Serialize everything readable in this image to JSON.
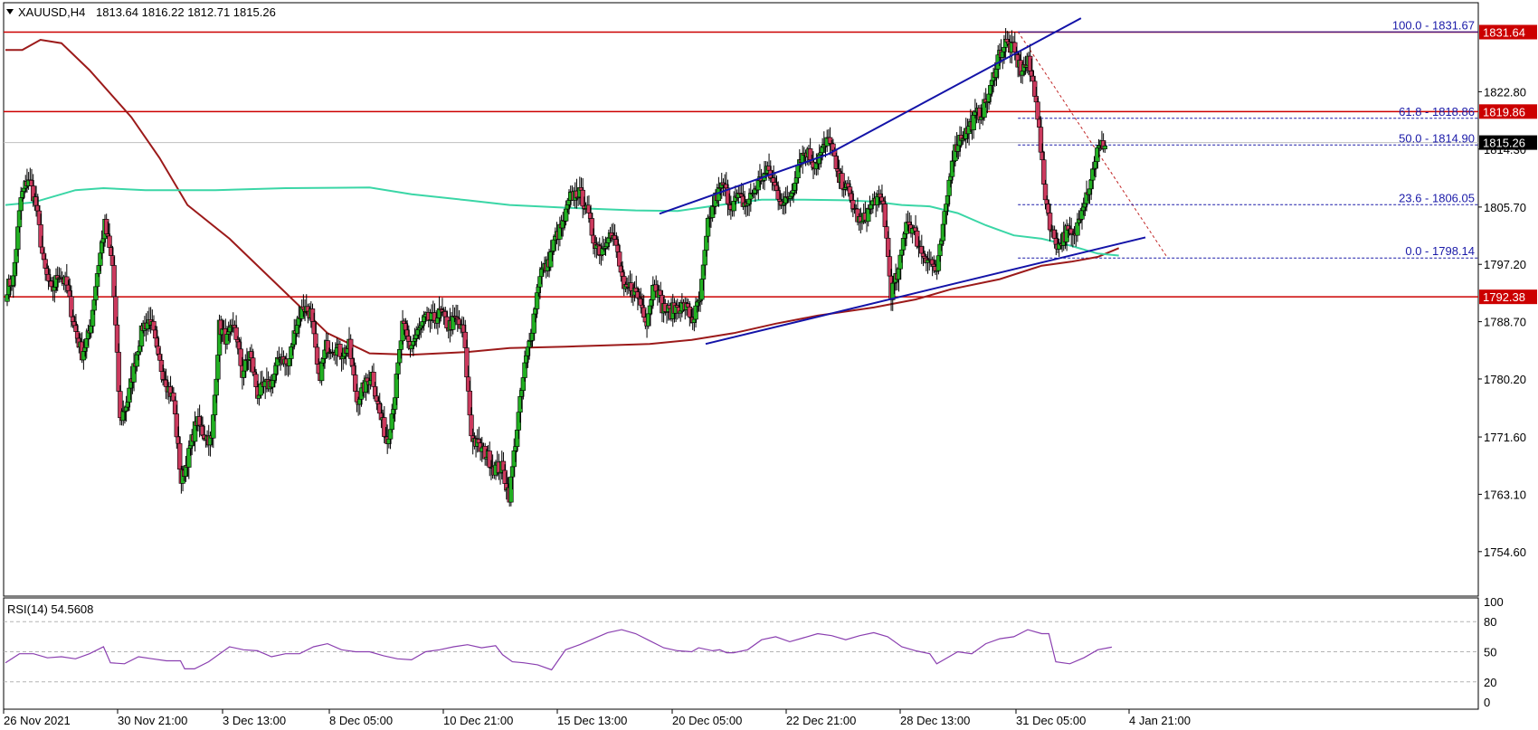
{
  "header": {
    "symbol": "XAUUSD,H4",
    "ohlc": "1813.64 1816.22 1812.71 1815.26"
  },
  "colors": {
    "bull": "#22b022",
    "bear": "#cc3a5e",
    "wick": "#000000",
    "sma_slow": "#9c1a1a",
    "sma_fast": "#3ad6a6",
    "trendline": "#1313a8",
    "level": "#cc0000",
    "fib": "#1a1aa8",
    "rsi": "#8a3fb0"
  },
  "chart_data": {
    "type": "candlestick",
    "ylim": [
      1748,
      1836
    ],
    "price_ticks": [
      "1822.80",
      "1814.30",
      "1805.70",
      "1797.20",
      "1788.70",
      "1780.20",
      "1771.60",
      "1763.10",
      "1754.60"
    ],
    "time_labels": [
      "26 Nov 2021",
      "30 Nov 21:00",
      "3 Dec 13:00",
      "8 Dec 05:00",
      "10 Dec 21:00",
      "15 Dec 13:00",
      "20 Dec 05:00",
      "22 Dec 21:00",
      "28 Dec 13:00",
      "31 Dec 05:00",
      "4 Jan 21:00"
    ],
    "current_price": "1815.26",
    "levels": [
      {
        "label": "1831.64",
        "value": 1831.64
      },
      {
        "label": "1819.86",
        "value": 1819.86
      },
      {
        "label": "1792.38",
        "value": 1792.38
      }
    ],
    "fibonacci": [
      {
        "label": "100.0 - 1831.67",
        "value": 1831.67
      },
      {
        "label": "61.8 - 1818.86",
        "value": 1818.86
      },
      {
        "label": "50.0 - 1814.90",
        "value": 1814.9
      },
      {
        "label": "23.6 - 1806.05",
        "value": 1806.05
      },
      {
        "label": "0.0 - 1798.14",
        "value": 1798.14
      }
    ],
    "closes": [
      1795,
      1807,
      1810,
      1806,
      1797,
      1793,
      1796,
      1794,
      1788,
      1784,
      1787,
      1796,
      1803,
      1797,
      1774,
      1777,
      1783,
      1788,
      1789,
      1783,
      1780,
      1777,
      1765,
      1769,
      1774,
      1772,
      1771,
      1788,
      1786,
      1788,
      1781,
      1784,
      1778,
      1779,
      1780,
      1784,
      1782,
      1788,
      1791,
      1790,
      1780,
      1785,
      1785,
      1784,
      1785,
      1777,
      1779,
      1781,
      1775,
      1771,
      1778,
      1788,
      1785,
      1787,
      1789,
      1789,
      1790,
      1788,
      1789,
      1787,
      1772,
      1770,
      1769,
      1767,
      1767,
      1763,
      1773,
      1782,
      1788,
      1796,
      1797,
      1801,
      1803,
      1807,
      1808,
      1806,
      1801,
      1799,
      1802,
      1800,
      1793,
      1794,
      1792,
      1789,
      1795,
      1791,
      1790,
      1791,
      1791,
      1789,
      1792,
      1803,
      1807,
      1809,
      1806,
      1807,
      1806,
      1808,
      1810,
      1811,
      1808,
      1806,
      1808,
      1813,
      1814,
      1812,
      1814,
      1816,
      1810,
      1809,
      1806,
      1803,
      1805,
      1807,
      1806,
      1793,
      1796,
      1804,
      1802,
      1799,
      1798,
      1796,
      1804,
      1813,
      1816,
      1817,
      1819,
      1820,
      1823,
      1828,
      1830,
      1829,
      1826,
      1827,
      1822,
      1809,
      1802,
      1800,
      1802,
      1801,
      1806,
      1809,
      1814,
      1815.26
    ],
    "sma_slow": [
      [
        0,
        1829
      ],
      [
        12,
        1829
      ],
      [
        25,
        1830.5
      ],
      [
        40,
        1830
      ],
      [
        60,
        1826
      ],
      [
        90,
        1819
      ],
      [
        110,
        1813
      ],
      [
        130,
        1806
      ],
      [
        160,
        1801
      ],
      [
        200,
        1793
      ],
      [
        230,
        1787
      ],
      [
        260,
        1784
      ],
      [
        290,
        1783.8
      ],
      [
        330,
        1784.2
      ],
      [
        360,
        1784.8
      ],
      [
        400,
        1785
      ],
      [
        430,
        1785.2
      ],
      [
        460,
        1785.4
      ],
      [
        490,
        1786
      ],
      [
        520,
        1787
      ],
      [
        550,
        1788.4
      ],
      [
        580,
        1789.6
      ],
      [
        620,
        1790.8
      ],
      [
        650,
        1792
      ],
      [
        675,
        1793.5
      ],
      [
        710,
        1795
      ],
      [
        740,
        1797
      ],
      [
        761,
        1797.6
      ],
      [
        780,
        1798.3
      ],
      [
        795,
        1799.6
      ]
    ],
    "sma_fast": [
      [
        0,
        1806
      ],
      [
        20,
        1806.4
      ],
      [
        50,
        1808.2
      ],
      [
        70,
        1808.5
      ],
      [
        100,
        1808.2
      ],
      [
        150,
        1808.2
      ],
      [
        200,
        1808.5
      ],
      [
        260,
        1808.6
      ],
      [
        290,
        1807.6
      ],
      [
        330,
        1806.7
      ],
      [
        360,
        1806
      ],
      [
        400,
        1805.6
      ],
      [
        450,
        1805.2
      ],
      [
        480,
        1805.1
      ],
      [
        510,
        1806
      ],
      [
        540,
        1806.8
      ],
      [
        570,
        1806.8
      ],
      [
        600,
        1806.7
      ],
      [
        620,
        1806.5
      ],
      [
        640,
        1806
      ],
      [
        660,
        1805.8
      ],
      [
        680,
        1804.8
      ],
      [
        700,
        1803
      ],
      [
        720,
        1801.5
      ],
      [
        740,
        1801
      ],
      [
        760,
        1800
      ],
      [
        780,
        1798.8
      ],
      [
        795,
        1798.5
      ]
    ],
    "trendlines": [
      {
        "a": [
          467,
          1804.7
        ],
        "b": [
          587,
          1813.5
        ]
      },
      {
        "a": [
          587,
          1813.5
        ],
        "b": [
          768,
          1833.7
        ]
      },
      {
        "a": [
          500,
          1785.4
        ],
        "b": [
          814,
          1801.2
        ]
      }
    ],
    "fib_swing": {
      "a": [
        723,
        1831.7
      ],
      "b": [
        830,
        1798.1
      ]
    },
    "rsi": {
      "label": "RSI(14) 54.5608",
      "ylim": [
        0,
        100
      ],
      "ticks": [
        "100",
        "80",
        "50",
        "20",
        "0"
      ],
      "levels": [
        80,
        50,
        20
      ],
      "values": [
        [
          0,
          39
        ],
        [
          10,
          48
        ],
        [
          20,
          48
        ],
        [
          30,
          44
        ],
        [
          40,
          45
        ],
        [
          50,
          43
        ],
        [
          60,
          48
        ],
        [
          70,
          55
        ],
        [
          75,
          39
        ],
        [
          85,
          38
        ],
        [
          95,
          45
        ],
        [
          105,
          43
        ],
        [
          115,
          41
        ],
        [
          125,
          41
        ],
        [
          128,
          33
        ],
        [
          135,
          33
        ],
        [
          145,
          40
        ],
        [
          160,
          55
        ],
        [
          170,
          52
        ],
        [
          180,
          51
        ],
        [
          190,
          45
        ],
        [
          200,
          48
        ],
        [
          210,
          48
        ],
        [
          220,
          55
        ],
        [
          230,
          58
        ],
        [
          240,
          52
        ],
        [
          250,
          50
        ],
        [
          260,
          50
        ],
        [
          270,
          46
        ],
        [
          280,
          43
        ],
        [
          290,
          42
        ],
        [
          300,
          50
        ],
        [
          310,
          52
        ],
        [
          320,
          55
        ],
        [
          330,
          57
        ],
        [
          340,
          54
        ],
        [
          350,
          56
        ],
        [
          355,
          47
        ],
        [
          362,
          40
        ],
        [
          370,
          39
        ],
        [
          380,
          37
        ],
        [
          390,
          32
        ],
        [
          400,
          52
        ],
        [
          410,
          57
        ],
        [
          420,
          63
        ],
        [
          430,
          69
        ],
        [
          440,
          72
        ],
        [
          450,
          68
        ],
        [
          460,
          61
        ],
        [
          470,
          54
        ],
        [
          480,
          51
        ],
        [
          490,
          50
        ],
        [
          495,
          54
        ],
        [
          505,
          51
        ],
        [
          510,
          52
        ],
        [
          515,
          49
        ],
        [
          520,
          49
        ],
        [
          530,
          52
        ],
        [
          540,
          62
        ],
        [
          550,
          65
        ],
        [
          560,
          60
        ],
        [
          570,
          64
        ],
        [
          580,
          68
        ],
        [
          590,
          66
        ],
        [
          600,
          62
        ],
        [
          610,
          66
        ],
        [
          620,
          69
        ],
        [
          630,
          65
        ],
        [
          640,
          55
        ],
        [
          650,
          51
        ],
        [
          660,
          48
        ],
        [
          665,
          38
        ],
        [
          670,
          42
        ],
        [
          680,
          50
        ],
        [
          690,
          48
        ],
        [
          700,
          58
        ],
        [
          710,
          63
        ],
        [
          720,
          65
        ],
        [
          730,
          72
        ],
        [
          740,
          68
        ],
        [
          745,
          68
        ],
        [
          750,
          40
        ],
        [
          760,
          38
        ],
        [
          770,
          44
        ],
        [
          780,
          52
        ],
        [
          790,
          54.5608
        ]
      ]
    }
  }
}
